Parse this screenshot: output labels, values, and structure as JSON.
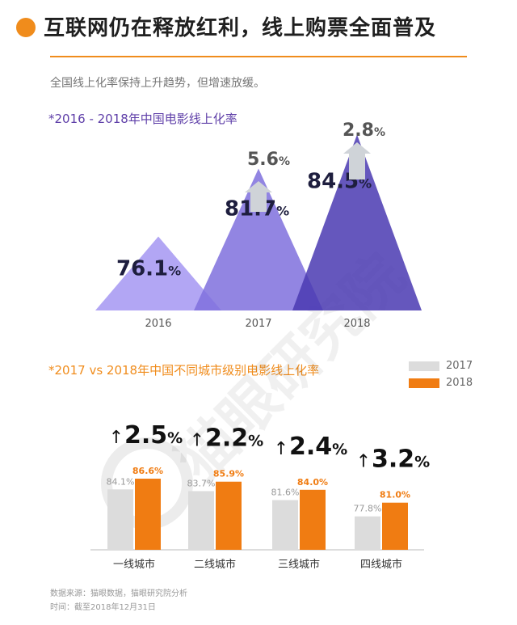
{
  "header": {
    "title": "互联网仍在释放红利，线上购票全面普及",
    "subtitle": "全国线上化率保持上升趋势，但增速放缓。",
    "accent_color": "#f08c1c"
  },
  "watermark": {
    "text": "猫眼研究院",
    "icon": "cat-eye-logo-icon"
  },
  "chart_data": [
    {
      "type": "area",
      "title": "*2016 - 2018年中国电影线上化率",
      "categories": [
        "2016",
        "2017",
        "2018"
      ],
      "values": [
        76.1,
        81.7,
        84.5
      ],
      "value_labels": [
        "76.1%",
        "81.7%",
        "84.5%"
      ],
      "increase_labels": [
        "",
        "5.6%",
        "2.8%"
      ],
      "colors": [
        "#a597f2",
        "#7f70dd",
        "#4a39b2"
      ]
    },
    {
      "type": "bar",
      "title": "*2017 vs 2018年中国不同城市级别电影线上化率",
      "categories": [
        "一线城市",
        "二线城市",
        "三线城市",
        "四线城市"
      ],
      "series": [
        {
          "name": "2017",
          "values": [
            84.1,
            83.7,
            81.6,
            77.8
          ],
          "labels": [
            "84.1%",
            "83.7%",
            "81.6%",
            "77.8%"
          ],
          "color": "#dcdcdc"
        },
        {
          "name": "2018",
          "values": [
            86.6,
            85.9,
            84.0,
            81.0
          ],
          "labels": [
            "86.6%",
            "85.9%",
            "84.0%",
            "81.0%"
          ],
          "color": "#f07c12"
        }
      ],
      "increase_labels": [
        "2.5%",
        "2.2%",
        "2.4%",
        "3.2%"
      ],
      "legend_position": "top-right"
    }
  ],
  "footer": {
    "source": "数据来源：猫眼数据，猫眼研究院分析",
    "time": "时间：截至2018年12月31日"
  }
}
